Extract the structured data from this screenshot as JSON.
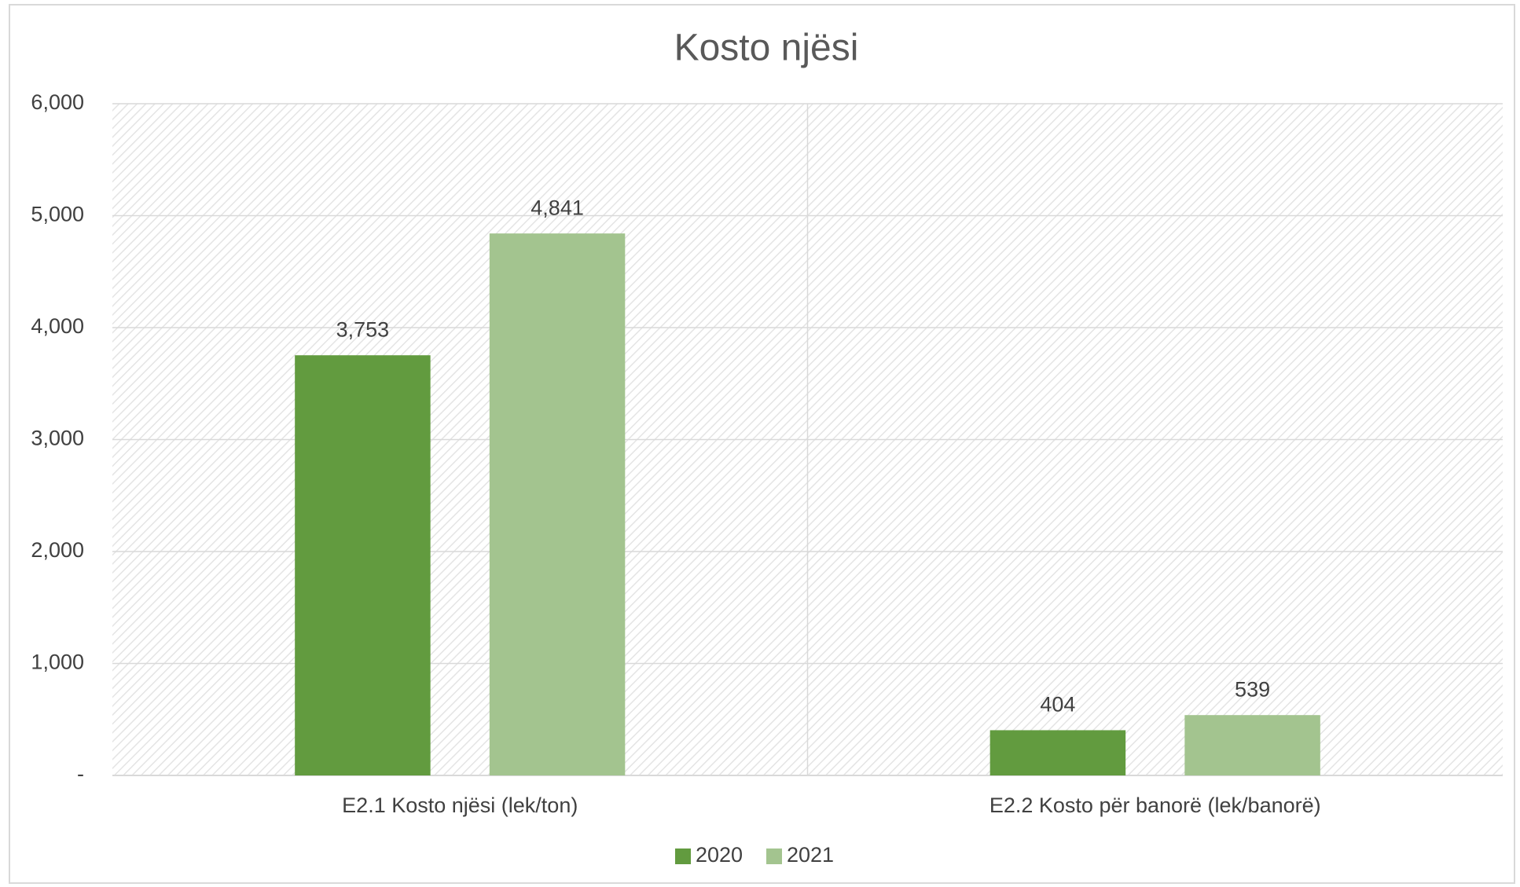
{
  "chart_data": {
    "type": "bar",
    "title": "Kosto njësi",
    "categories": [
      "E2.1 Kosto njësi (lek/ton)",
      "E2.2 Kosto për banorë (lek/banorë)"
    ],
    "series": [
      {
        "name": "2020",
        "color": "#629b3f",
        "values": [
          3753,
          404
        ],
        "value_labels": [
          "3,753",
          "404"
        ]
      },
      {
        "name": "2021",
        "color": "#a3c48f",
        "values": [
          4841,
          539
        ],
        "value_labels": [
          "4,841",
          "539"
        ]
      }
    ],
    "ylim": [
      0,
      6000
    ],
    "yticks": [
      {
        "value": 0,
        "label": "-"
      },
      {
        "value": 1000,
        "label": "1,000"
      },
      {
        "value": 2000,
        "label": "2,000"
      },
      {
        "value": 3000,
        "label": "3,000"
      },
      {
        "value": 4000,
        "label": "4,000"
      },
      {
        "value": 5000,
        "label": "5,000"
      },
      {
        "value": 6000,
        "label": "6,000"
      }
    ],
    "grid": true,
    "legend": "bottom"
  }
}
